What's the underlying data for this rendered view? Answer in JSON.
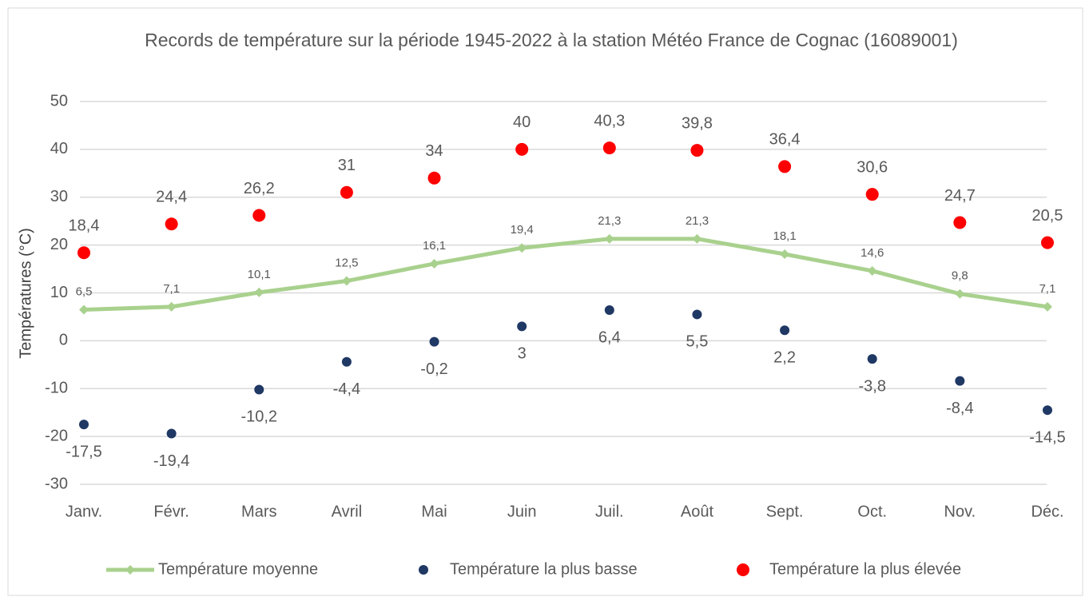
{
  "chart_data": {
    "type": "line",
    "title": "Records de température sur la période 1945-2022 à la station Météo France de Cognac (16089001)",
    "ylabel": "Températures (°C)",
    "categories": [
      "Janv.",
      "Févr.",
      "Mars",
      "Avril",
      "Mai",
      "Juin",
      "Juil.",
      "Août",
      "Sept.",
      "Oct.",
      "Nov.",
      "Déc."
    ],
    "ylim": [
      -30,
      50
    ],
    "yticks": [
      -30,
      -20,
      -10,
      0,
      10,
      20,
      30,
      40,
      50
    ],
    "grid": true,
    "legend": "bottom",
    "series": [
      {
        "name": "Température moyenne",
        "color": "#a9d18e",
        "mode": "line",
        "values": [
          6.5,
          7.1,
          10.1,
          12.5,
          16.1,
          19.4,
          21.3,
          21.3,
          18.1,
          14.6,
          9.8,
          7.1
        ],
        "value_labels": [
          "6,5",
          "7,1",
          "10,1",
          "12,5",
          "16,1",
          "19,4",
          "21,3",
          "21,3",
          "18,1",
          "14,6",
          "9,8",
          "7,1"
        ]
      },
      {
        "name": "Température la plus basse",
        "color": "#1f3864",
        "mode": "markers",
        "values": [
          -17.5,
          -19.4,
          -10.2,
          -4.4,
          -0.2,
          3,
          6.4,
          5.5,
          2.2,
          -3.8,
          -8.4,
          -14.5
        ],
        "value_labels": [
          "-17,5",
          "-19,4",
          "-10,2",
          "-4,4",
          "-0,2",
          "3",
          "6,4",
          "5,5",
          "2,2",
          "-3,8",
          "-8,4",
          "-14,5"
        ]
      },
      {
        "name": "Température la plus élevée",
        "color": "#ff0000",
        "mode": "markers",
        "values": [
          18.4,
          24.4,
          26.2,
          31,
          34,
          40,
          40.3,
          39.8,
          36.4,
          30.6,
          24.7,
          20.5
        ],
        "value_labels": [
          "18,4",
          "24,4",
          "26,2",
          "31",
          "34",
          "40",
          "40,3",
          "39,8",
          "36,4",
          "30,6",
          "24,7",
          "20,5"
        ]
      }
    ]
  }
}
